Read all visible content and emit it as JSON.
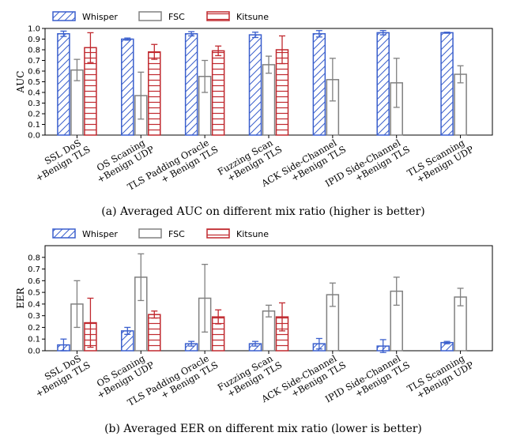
{
  "colors": {
    "Whisper": "#3a5fcd",
    "FSC": "#808080",
    "Kitsune": "#c0282e"
  },
  "chart_data": [
    {
      "type": "bar",
      "caption": "(a)  Averaged AUC on different mix ratio (higher is better)",
      "ylabel": "AUC",
      "ylim": [
        0,
        1.0
      ],
      "yticks": [
        "0.0",
        "0.1",
        "0.2",
        "0.3",
        "0.4",
        "0.5",
        "0.6",
        "0.7",
        "0.8",
        "0.9",
        "1.0"
      ],
      "legend_position": "top",
      "grid": false,
      "categories": [
        [
          "SSL DoS",
          "+Benign TLS"
        ],
        [
          "OS Scaning",
          "+Benign UDP"
        ],
        [
          "TLS Padding Oracle",
          "+ Benign TLS"
        ],
        [
          "Fuzzing Scan",
          "+Benign TLS"
        ],
        [
          "ACK Side-Channel",
          "+Benign TLS"
        ],
        [
          "IPID Side-Channel",
          "+Benign TLS"
        ],
        [
          "TLS Scanning",
          "+Benign UDP"
        ]
      ],
      "series": [
        {
          "name": "Whisper",
          "hatch": "diag",
          "values": [
            0.95,
            0.9,
            0.95,
            0.94,
            0.95,
            0.96,
            0.96
          ],
          "errors": [
            0.025,
            0.01,
            0.02,
            0.025,
            0.03,
            0.02,
            0.005
          ]
        },
        {
          "name": "FSC",
          "hatch": "none",
          "values": [
            0.61,
            0.37,
            0.55,
            0.66,
            0.52,
            0.49,
            0.57
          ],
          "errors": [
            0.1,
            0.22,
            0.15,
            0.08,
            0.2,
            0.23,
            0.08
          ]
        },
        {
          "name": "Kitsune",
          "hatch": "horiz",
          "values": [
            0.82,
            0.78,
            0.79,
            0.8,
            0.0,
            0.0,
            0.0
          ],
          "errors": [
            0.14,
            0.07,
            0.045,
            0.13,
            0,
            0,
            0
          ]
        }
      ]
    },
    {
      "type": "bar",
      "caption": "(b)  Averaged EER on different mix ratio (lower is better)",
      "ylabel": "EER",
      "ylim": [
        0,
        0.9
      ],
      "yticks": [
        "0.0",
        "0.1",
        "0.2",
        "0.3",
        "0.4",
        "0.5",
        "0.6",
        "0.7",
        "0.8"
      ],
      "legend_position": "top",
      "grid": false,
      "categories": [
        [
          "SSL DoS",
          "+Benign TLS"
        ],
        [
          "OS Scaning",
          "+Benign UDP"
        ],
        [
          "TLS Padding Oracle",
          "+ Benign TLS"
        ],
        [
          "Fuzzing Scan",
          "+Benign TLS"
        ],
        [
          "ACK Side-Channel",
          "+Benign TLS"
        ],
        [
          "IPID Side-Channel",
          "+Benign TLS"
        ],
        [
          "TLS Scanning",
          "+Benign UDP"
        ]
      ],
      "series": [
        {
          "name": "Whisper",
          "hatch": "diag",
          "values": [
            0.05,
            0.17,
            0.06,
            0.06,
            0.06,
            0.04,
            0.07
          ],
          "errors": [
            0.05,
            0.03,
            0.02,
            0.02,
            0.045,
            0.055,
            0.01
          ]
        },
        {
          "name": "FSC",
          "hatch": "none",
          "values": [
            0.4,
            0.63,
            0.45,
            0.34,
            0.48,
            0.51,
            0.46
          ],
          "errors": [
            0.2,
            0.2,
            0.29,
            0.05,
            0.1,
            0.12,
            0.075
          ]
        },
        {
          "name": "Kitsune",
          "hatch": "horiz",
          "values": [
            0.24,
            0.31,
            0.29,
            0.29,
            0.0,
            0.0,
            0.0
          ],
          "errors": [
            0.21,
            0.03,
            0.06,
            0.12,
            0,
            0,
            0
          ]
        }
      ]
    }
  ]
}
